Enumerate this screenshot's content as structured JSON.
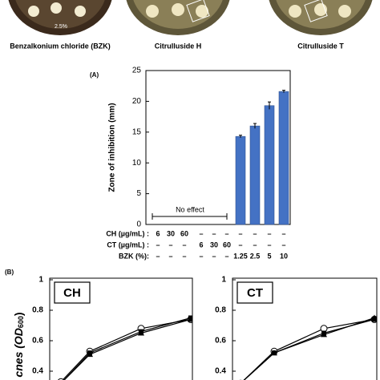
{
  "header": {
    "labels": [
      "Benzalkonium chloride (BZK)",
      "Citrulluside H",
      "Citrulluside T"
    ],
    "dish_note": "2.5%"
  },
  "chart_data": [
    {
      "type": "bar",
      "panel": "(A)",
      "y_label": "Zone of inhibition (mm)",
      "ylim": [
        0,
        25
      ],
      "yticks": [
        0,
        5,
        10,
        15,
        20,
        25
      ],
      "color": "#4472c4",
      "values": [
        null,
        null,
        null,
        null,
        null,
        null,
        14.3,
        16,
        19.3,
        21.6
      ],
      "errors": [
        null,
        null,
        null,
        null,
        null,
        null,
        0.2,
        0.4,
        0.6,
        0.2
      ],
      "annotation": "No effect",
      "table": {
        "rows": [
          {
            "label": "CH (µg/mL) :",
            "cells": [
              "6",
              "30",
              "60",
              "–",
              "–",
              "–",
              "–",
              "–",
              "–",
              "–"
            ]
          },
          {
            "label": "CT (µg/mL) :",
            "cells": [
              "–",
              "–",
              "–",
              "6",
              "30",
              "60",
              "–",
              "–",
              "–",
              "–"
            ]
          },
          {
            "label": "BZK (%):",
            "cells": [
              "–",
              "–",
              "–",
              "–",
              "–",
              "–",
              "1.25",
              "2.5",
              "5",
              "10"
            ]
          }
        ]
      }
    },
    {
      "type": "line",
      "panel": "(B)",
      "box_label": "CH",
      "y_label": [
        "cnes (OD",
        "600",
        ")"
      ],
      "ylim": [
        0.3,
        1
      ],
      "yticks": [
        1,
        0.8,
        0.6,
        0.4
      ],
      "categories": [
        null,
        null,
        null,
        null
      ],
      "series": [
        {
          "marker": "circle",
          "color": "#000000",
          "values": [
            0.33,
            0.53,
            0.68,
            0.74
          ]
        },
        {
          "marker": "triangle",
          "color": "#000000",
          "values": [
            0.32,
            0.51,
            0.65,
            0.74
          ]
        },
        {
          "marker": "square",
          "color": "#000000",
          "values": [
            0.32,
            0.52,
            0.66,
            0.75
          ]
        }
      ]
    },
    {
      "type": "line",
      "box_label": "CT",
      "ylim": [
        0.3,
        1
      ],
      "yticks": [
        1,
        0.8,
        0.6,
        0.4
      ],
      "categories": [
        null,
        null,
        null,
        null
      ],
      "series": [
        {
          "marker": "circle",
          "color": "#000000",
          "values": [
            0.32,
            0.53,
            0.68,
            0.74
          ]
        },
        {
          "marker": "triangle",
          "color": "#000000",
          "values": [
            0.32,
            0.52,
            0.64,
            0.75
          ]
        },
        {
          "marker": "square",
          "color": "#000000",
          "values": [
            0.32,
            0.52,
            0.65,
            0.74
          ]
        }
      ]
    }
  ]
}
